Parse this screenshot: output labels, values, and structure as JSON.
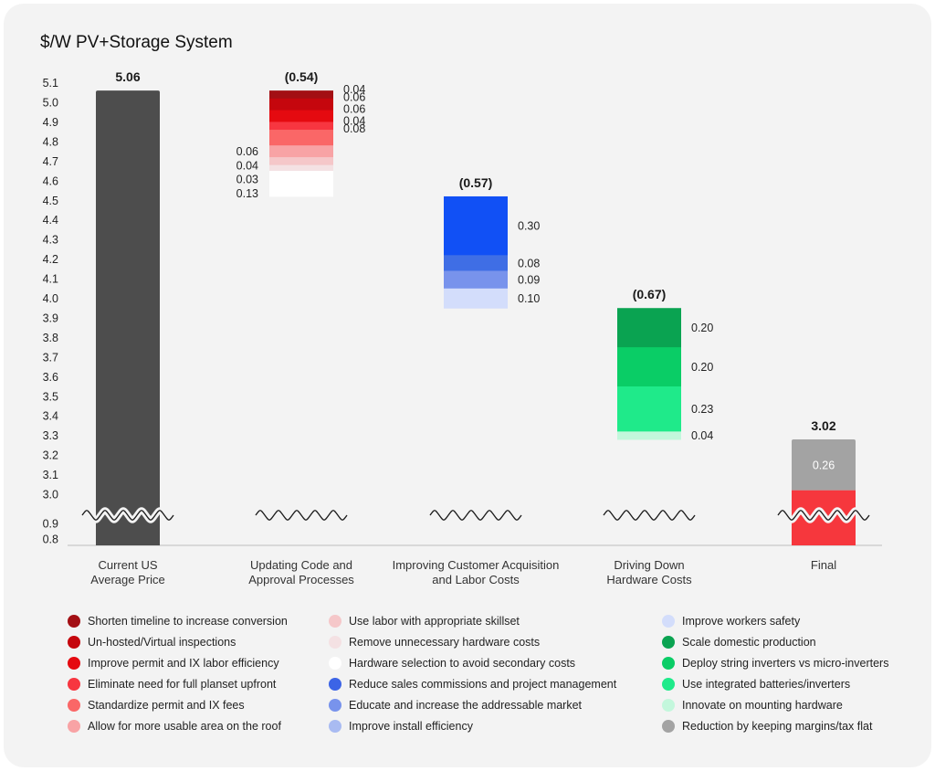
{
  "chart_data": {
    "type": "bar",
    "title": "$/W PV+Storage System",
    "yticks_upper": [
      "5.1",
      "5.0",
      "4.9",
      "4.8",
      "4.7",
      "4.6",
      "4.5",
      "4.4",
      "4.3",
      "4.2",
      "4.1",
      "4.0",
      "3.9",
      "3.8",
      "3.7",
      "3.6",
      "3.5",
      "3.4",
      "3.3",
      "3.2",
      "3.1",
      "3.0"
    ],
    "yticks_lower": [
      "0.9",
      "0.8"
    ],
    "axis_break": true,
    "categories": [
      {
        "label": [
          "Current US",
          "Average Price"
        ],
        "total_label": "5.06",
        "start": 5.06,
        "segments": [
          {
            "value": 5.06,
            "color": "#4d4d4d",
            "label": ""
          }
        ]
      },
      {
        "label": [
          "Updating Code and",
          "Approval Processes"
        ],
        "total_label": "(0.54)",
        "start": 5.06,
        "segments": [
          {
            "value": 0.04,
            "color": "#a30f14",
            "label": "0.04",
            "side": "right"
          },
          {
            "value": 0.06,
            "color": "#c5060d",
            "label": "0.06",
            "side": "right"
          },
          {
            "value": 0.06,
            "color": "#e50a10",
            "label": "0.06",
            "side": "right"
          },
          {
            "value": 0.04,
            "color": "#f73640",
            "label": "0.04",
            "side": "right"
          },
          {
            "value": 0.08,
            "color": "#fa6767",
            "label": "0.08",
            "side": "right"
          },
          {
            "value": 0.06,
            "color": "#f8a3a5",
            "label": "0.06",
            "side": "left"
          },
          {
            "value": 0.04,
            "color": "#f5c7c9",
            "label": "0.04",
            "side": "left"
          },
          {
            "value": 0.03,
            "color": "#f4e1e3",
            "label": "0.03",
            "side": "left"
          },
          {
            "value": 0.13,
            "color": "#ffffff",
            "label": "0.13",
            "side": "left"
          }
        ]
      },
      {
        "label": [
          "Improving Customer Acquisition",
          "and Labor Costs"
        ],
        "total_label": "(0.57)",
        "start": 4.52,
        "segments": [
          {
            "value": 0.3,
            "color": "#1150f5",
            "label": "0.30",
            "side": "right"
          },
          {
            "value": 0.08,
            "color": "#3f6ee5",
            "label": "0.08",
            "side": "right"
          },
          {
            "value": 0.09,
            "color": "#7893ec",
            "label": "0.09",
            "side": "right"
          },
          {
            "value": 0.1,
            "color": "#d3ddfb",
            "label": "0.10",
            "side": "right"
          }
        ]
      },
      {
        "label": [
          "Driving Down",
          "Hardware Costs"
        ],
        "total_label": "(0.67)",
        "start": 3.95,
        "segments": [
          {
            "value": 0.2,
            "color": "#0aa351",
            "label": "0.20",
            "side": "right"
          },
          {
            "value": 0.2,
            "color": "#0acd66",
            "label": "0.20",
            "side": "right"
          },
          {
            "value": 0.23,
            "color": "#1fea8a",
            "label": "0.23",
            "side": "right"
          },
          {
            "value": 0.04,
            "color": "#c3f7dc",
            "label": "0.04",
            "side": "right"
          }
        ]
      },
      {
        "label": [
          "Final"
        ],
        "total_label": "3.02",
        "start": 3.28,
        "segments": [
          {
            "value": 0.26,
            "color": "#a3a3a3",
            "label": "0.26",
            "side": "inside"
          },
          {
            "value": 3.02,
            "color": "#f6373d",
            "label": "",
            "side": "none"
          }
        ]
      }
    ],
    "legend": [
      [
        {
          "label": "Shorten timeline to increase conversion",
          "color": "#a30f14"
        },
        {
          "label": "Un-hosted/Virtual inspections",
          "color": "#c5060d"
        },
        {
          "label": "Improve permit and IX labor efficiency",
          "color": "#e50a10"
        },
        {
          "label": "Eliminate need for full planset upfront",
          "color": "#f73640"
        },
        {
          "label": "Standardize permit and IX fees",
          "color": "#fa6767"
        },
        {
          "label": "Allow for more usable area on the roof",
          "color": "#f8a3a5"
        }
      ],
      [
        {
          "label": "Use labor with appropriate skillset",
          "color": "#f5c7c9"
        },
        {
          "label": "Remove unnecessary hardware costs",
          "color": "#f4e1e3"
        },
        {
          "label": "Hardware selection to avoid secondary costs",
          "color": "#ffffff"
        },
        {
          "label": "Reduce sales commissions and project management",
          "color": "#3c64e6"
        },
        {
          "label": "Educate and increase the addressable market",
          "color": "#7893ec"
        },
        {
          "label": "Improve install efficiency",
          "color": "#a9bbf2"
        }
      ],
      [
        {
          "label": "Improve workers safety",
          "color": "#d3ddfb"
        },
        {
          "label": "Scale domestic production",
          "color": "#0aa351"
        },
        {
          "label": "Deploy string inverters vs micro-inverters",
          "color": "#0acd66"
        },
        {
          "label": "Use integrated batteries/inverters",
          "color": "#1fea8a"
        },
        {
          "label": "Innovate on mounting hardware",
          "color": "#c3f7dc"
        },
        {
          "label": "Reduction by keeping margins/tax flat",
          "color": "#a3a3a3"
        }
      ]
    ]
  }
}
